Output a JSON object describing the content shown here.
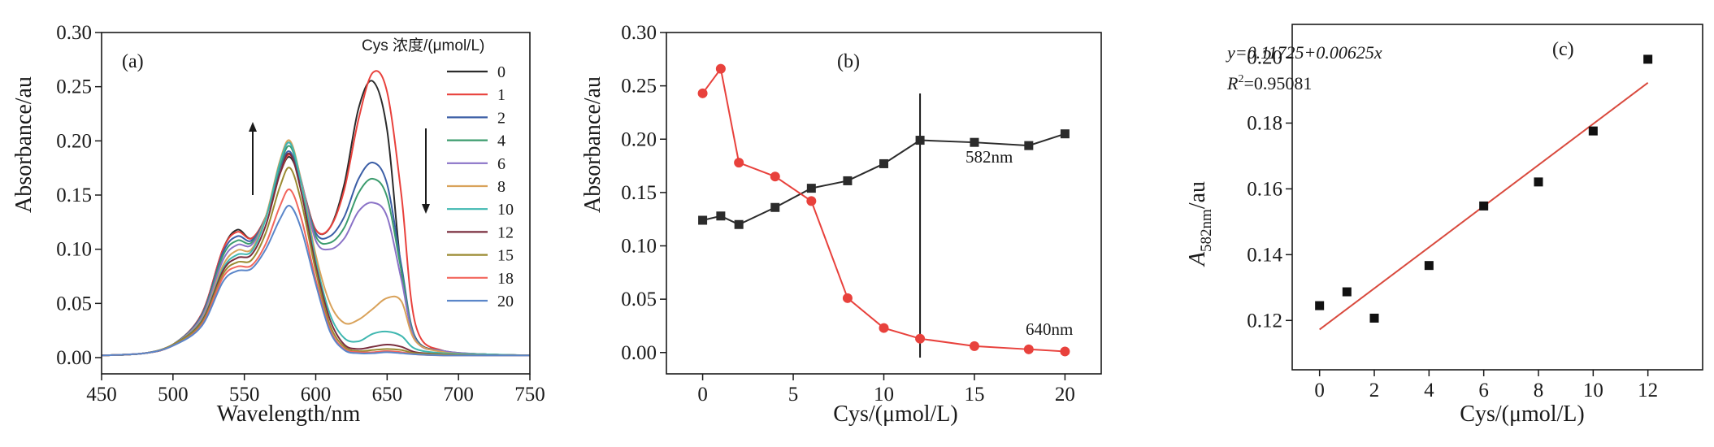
{
  "colors": {
    "black": "#2b2b2b",
    "red": "#e8413c",
    "blue": "#3b5ea6",
    "green": "#3c9c6e",
    "purple": "#8a72c7",
    "orange": "#d9a25a",
    "teal": "#3fb7b0",
    "brown": "#7a2e3e",
    "olive": "#9a8a30",
    "salmon": "#f2665c",
    "lightblue": "#5b86c9",
    "fitline": "#d94a3e"
  },
  "chart_data": [
    {
      "type": "line",
      "panel_label": "(a)",
      "xlabel": "Wavelength/nm",
      "ylabel": "Absorbance/au",
      "xlim": [
        450,
        750
      ],
      "ylim": [
        -0.015,
        0.3
      ],
      "xticks": [
        "450",
        "500",
        "550",
        "600",
        "650",
        "700",
        "750"
      ],
      "yticks": [
        "0.00",
        "0.05",
        "0.10",
        "0.15",
        "0.20",
        "0.25",
        "0.30"
      ],
      "legend_title": "Cys 浓度/(μmol/L)",
      "legend_position": "top-right",
      "wavelength_points": [
        450,
        480,
        500,
        520,
        535,
        545,
        555,
        565,
        575,
        582,
        590,
        600,
        610,
        620,
        630,
        640,
        650,
        660,
        670,
        690,
        720,
        750
      ],
      "series": [
        {
          "name": "0",
          "color_key": "black",
          "values": [
            0.002,
            0.004,
            0.012,
            0.04,
            0.1,
            0.118,
            0.11,
            0.13,
            0.17,
            0.185,
            0.16,
            0.118,
            0.12,
            0.16,
            0.23,
            0.255,
            0.21,
            0.08,
            0.018,
            0.006,
            0.003,
            0.002
          ]
        },
        {
          "name": "1",
          "color_key": "red",
          "values": [
            0.002,
            0.004,
            0.012,
            0.04,
            0.1,
            0.116,
            0.11,
            0.13,
            0.17,
            0.187,
            0.16,
            0.118,
            0.12,
            0.155,
            0.22,
            0.263,
            0.245,
            0.15,
            0.03,
            0.006,
            0.003,
            0.002
          ]
        },
        {
          "name": "2",
          "color_key": "blue",
          "values": [
            0.002,
            0.004,
            0.012,
            0.039,
            0.097,
            0.112,
            0.108,
            0.13,
            0.175,
            0.19,
            0.16,
            0.115,
            0.112,
            0.13,
            0.165,
            0.18,
            0.16,
            0.085,
            0.018,
            0.006,
            0.003,
            0.002
          ]
        },
        {
          "name": "4",
          "color_key": "green",
          "values": [
            0.002,
            0.004,
            0.012,
            0.038,
            0.094,
            0.108,
            0.106,
            0.13,
            0.177,
            0.195,
            0.162,
            0.112,
            0.106,
            0.12,
            0.152,
            0.165,
            0.148,
            0.08,
            0.017,
            0.006,
            0.003,
            0.002
          ]
        },
        {
          "name": "6",
          "color_key": "purple",
          "values": [
            0.002,
            0.004,
            0.012,
            0.037,
            0.09,
            0.104,
            0.104,
            0.13,
            0.18,
            0.198,
            0.163,
            0.108,
            0.1,
            0.11,
            0.135,
            0.143,
            0.13,
            0.072,
            0.016,
            0.006,
            0.003,
            0.002
          ]
        },
        {
          "name": "8",
          "color_key": "orange",
          "values": [
            0.002,
            0.004,
            0.012,
            0.035,
            0.085,
            0.099,
            0.1,
            0.13,
            0.182,
            0.2,
            0.162,
            0.095,
            0.05,
            0.032,
            0.035,
            0.045,
            0.055,
            0.052,
            0.015,
            0.005,
            0.003,
            0.002
          ]
        },
        {
          "name": "10",
          "color_key": "teal",
          "values": [
            0.002,
            0.004,
            0.012,
            0.034,
            0.082,
            0.095,
            0.098,
            0.128,
            0.18,
            0.198,
            0.16,
            0.09,
            0.04,
            0.018,
            0.015,
            0.022,
            0.024,
            0.02,
            0.008,
            0.004,
            0.003,
            0.002
          ]
        },
        {
          "name": "12",
          "color_key": "brown",
          "values": [
            0.002,
            0.004,
            0.012,
            0.033,
            0.08,
            0.092,
            0.095,
            0.122,
            0.17,
            0.188,
            0.152,
            0.085,
            0.035,
            0.012,
            0.008,
            0.01,
            0.012,
            0.01,
            0.005,
            0.003,
            0.002,
            0.002
          ]
        },
        {
          "name": "15",
          "color_key": "olive",
          "values": [
            0.002,
            0.004,
            0.012,
            0.032,
            0.077,
            0.088,
            0.09,
            0.115,
            0.158,
            0.175,
            0.143,
            0.08,
            0.03,
            0.01,
            0.006,
            0.007,
            0.008,
            0.007,
            0.004,
            0.003,
            0.002,
            0.002
          ]
        },
        {
          "name": "18",
          "color_key": "salmon",
          "values": [
            0.002,
            0.004,
            0.011,
            0.03,
            0.074,
            0.084,
            0.085,
            0.105,
            0.14,
            0.155,
            0.128,
            0.072,
            0.026,
            0.008,
            0.005,
            0.005,
            0.006,
            0.005,
            0.003,
            0.002,
            0.002,
            0.002
          ]
        },
        {
          "name": "20",
          "color_key": "lightblue",
          "values": [
            0.002,
            0.004,
            0.011,
            0.029,
            0.07,
            0.08,
            0.082,
            0.1,
            0.128,
            0.14,
            0.118,
            0.068,
            0.024,
            0.007,
            0.004,
            0.004,
            0.005,
            0.004,
            0.003,
            0.002,
            0.002,
            0.002
          ]
        }
      ]
    },
    {
      "type": "line",
      "panel_label": "(b)",
      "xlabel": "Cys/(μmol/L)",
      "ylabel": "Absorbance/au",
      "xlim": [
        -2,
        22
      ],
      "ylim": [
        -0.02,
        0.3
      ],
      "xticks": [
        "0",
        "5",
        "10",
        "15",
        "20"
      ],
      "yticks": [
        "0.00",
        "0.05",
        "0.10",
        "0.15",
        "0.20",
        "0.25",
        "0.30"
      ],
      "vertical_line_x": 12,
      "series": [
        {
          "name": "582nm",
          "color_key": "black",
          "marker": "square",
          "x": [
            0,
            1,
            2,
            4,
            6,
            8,
            10,
            12,
            15,
            18,
            20
          ],
          "y": [
            0.124,
            0.128,
            0.12,
            0.136,
            0.154,
            0.161,
            0.177,
            0.199,
            0.197,
            0.194,
            0.205
          ]
        },
        {
          "name": "640nm",
          "color_key": "red",
          "marker": "circle",
          "x": [
            0,
            1,
            2,
            4,
            6,
            8,
            10,
            12,
            15,
            18,
            20
          ],
          "y": [
            0.243,
            0.266,
            0.178,
            0.165,
            0.142,
            0.051,
            0.023,
            0.013,
            0.006,
            0.003,
            0.001
          ]
        }
      ]
    },
    {
      "type": "scatter",
      "panel_label": "(c)",
      "xlabel": "Cys/(μmol/L)",
      "ylabel_main": "A",
      "ylabel_sub": "582nm",
      "ylabel_suffix": "/au",
      "xlim": [
        -1,
        14
      ],
      "ylim": [
        0.105,
        0.21
      ],
      "xticks": [
        "0",
        "2",
        "4",
        "6",
        "8",
        "10",
        "12"
      ],
      "yticks": [
        "0.12",
        "0.14",
        "0.16",
        "0.18",
        "0.20"
      ],
      "equation": "y=0.11725+0.00625x",
      "r2_label": "R",
      "r2_value": "=0.95081",
      "fit": {
        "intercept": 0.11725,
        "slope": 0.00625,
        "x_range": [
          0,
          12
        ]
      },
      "points": {
        "x": [
          0,
          1,
          2,
          4,
          6,
          8,
          10,
          12
        ],
        "y": [
          0.1245,
          0.1287,
          0.1207,
          0.1367,
          0.1548,
          0.1621,
          0.1776,
          0.1994
        ]
      }
    }
  ]
}
